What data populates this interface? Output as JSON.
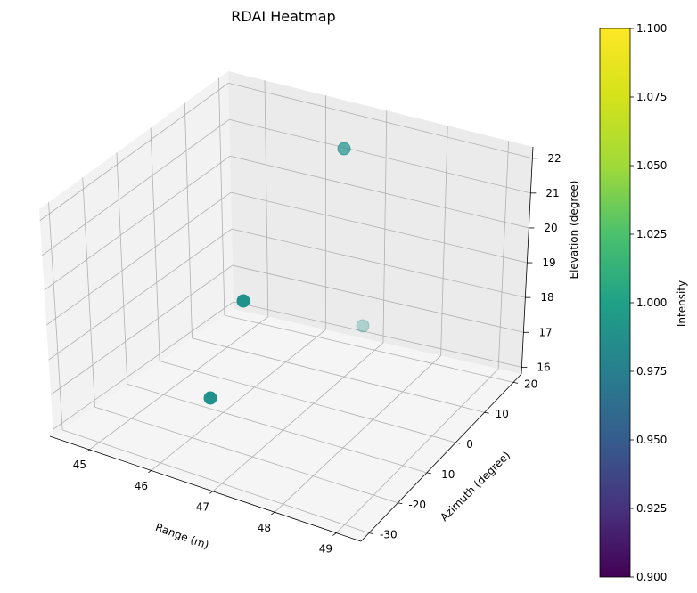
{
  "chart_data": {
    "type": "scatter3d",
    "title": "RDAI Heatmap",
    "xlabel": "Range (m)",
    "ylabel": "Azimuth (degree)",
    "zlabel": "Elevation (degree)",
    "x_ticks": [
      "45",
      "46",
      "47",
      "48",
      "49"
    ],
    "y_ticks": [
      "-30",
      "-20",
      "-10",
      "0",
      "10",
      "20"
    ],
    "z_ticks": [
      "16",
      "17",
      "18",
      "19",
      "20",
      "21",
      "22"
    ],
    "grid": true,
    "points": [
      {
        "x": 44.8,
        "y": 24,
        "z": 22.2,
        "intensity": 1.0,
        "alpha": 0.7
      },
      {
        "x": 45.2,
        "y": -20,
        "z": 18.5,
        "intensity": 1.0,
        "alpha": 1.0
      },
      {
        "x": 48.6,
        "y": 22,
        "z": 16.3,
        "intensity": 1.0,
        "alpha": 0.3
      },
      {
        "x": 46.2,
        "y": -28,
        "z": 15.9,
        "intensity": 1.0,
        "alpha": 1.0
      }
    ],
    "colorbar": {
      "label": "Intensity",
      "range": [
        0.9,
        1.1
      ],
      "ticks": [
        "0.900",
        "0.925",
        "0.950",
        "0.975",
        "1.000",
        "1.025",
        "1.050",
        "1.075",
        "1.100"
      ],
      "colormap": "viridis"
    },
    "point_color": "#21918c"
  }
}
